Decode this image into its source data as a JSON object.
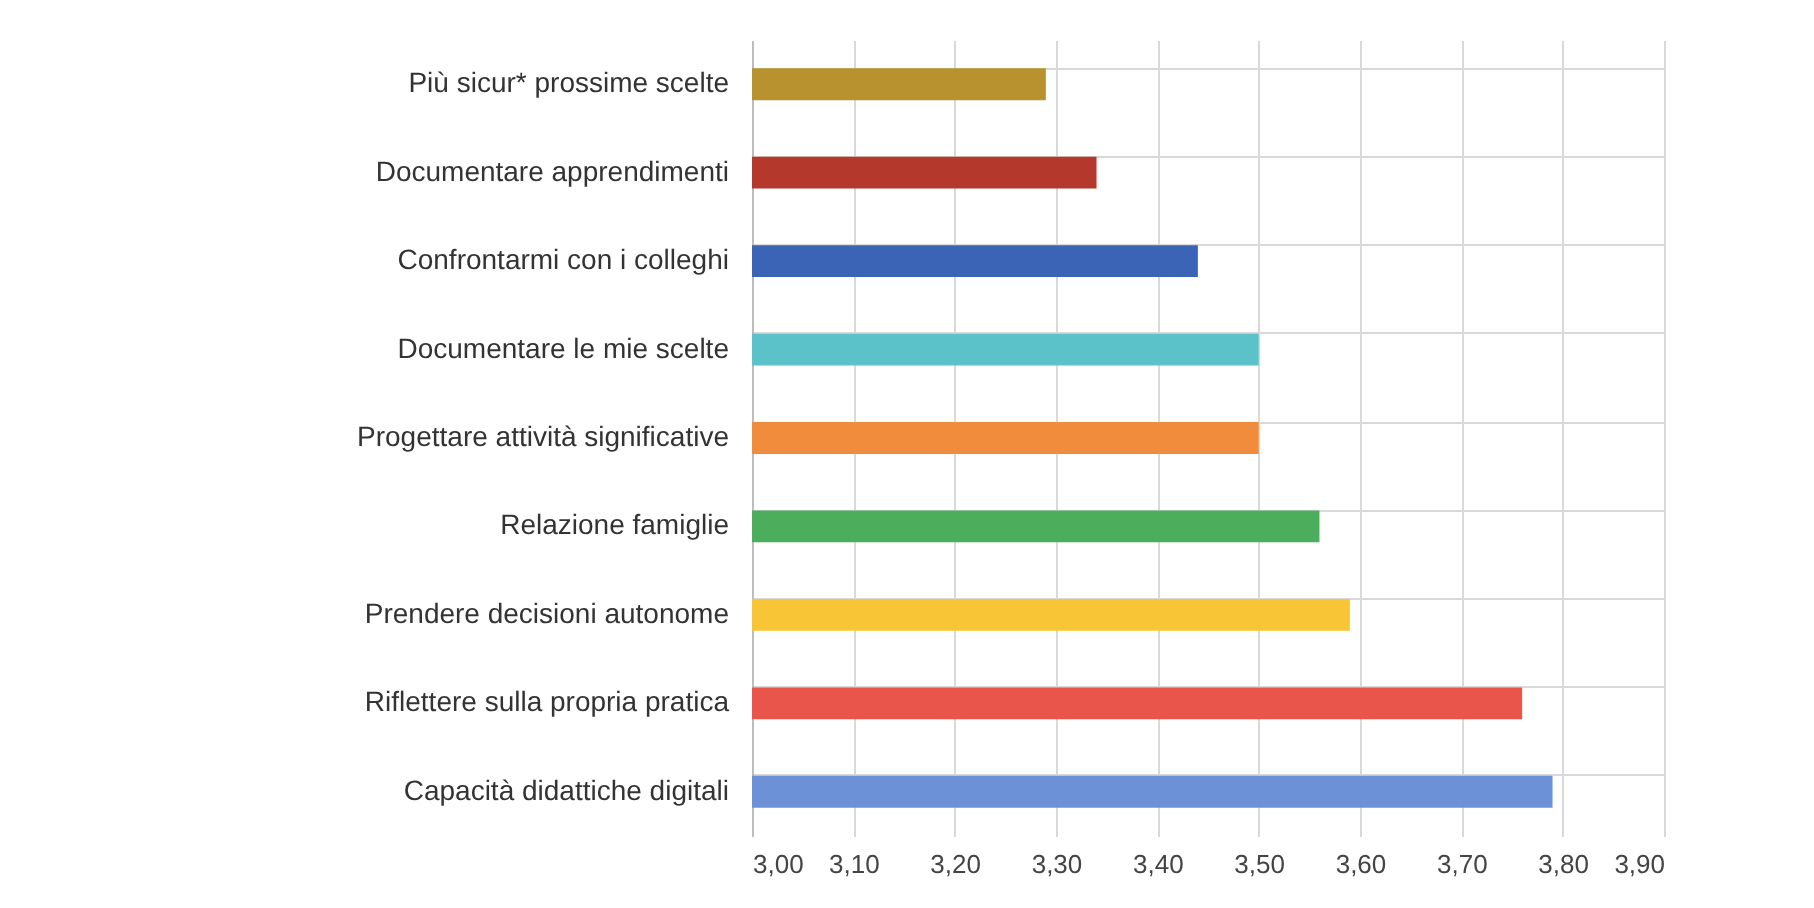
{
  "chart_data": {
    "type": "bar",
    "orientation": "horizontal",
    "categories": [
      "Più sicur* prossime scelte",
      "Documentare apprendimenti",
      "Confrontarmi con i colleghi",
      "Documentare le mie scelte",
      "Progettare attività significative",
      "Relazione famiglie",
      "Prendere decisioni autonome",
      "Riflettere sulla propria pratica",
      "Capacità didattiche digitali"
    ],
    "values": [
      3.29,
      3.34,
      3.44,
      3.5,
      3.5,
      3.56,
      3.59,
      3.76,
      3.79
    ],
    "colors": [
      "#b8922f",
      "#b5382c",
      "#3b63b6",
      "#5cc2ca",
      "#f08c3c",
      "#4cae5c",
      "#f7c535",
      "#e9554b",
      "#6d91d6"
    ],
    "xlim": [
      3.0,
      3.9
    ],
    "xticks": [
      {
        "value": 3.0,
        "label": "3,00"
      },
      {
        "value": 3.1,
        "label": "3,10"
      },
      {
        "value": 3.2,
        "label": "3,20"
      },
      {
        "value": 3.3,
        "label": "3,30"
      },
      {
        "value": 3.4,
        "label": "3,40"
      },
      {
        "value": 3.5,
        "label": "3,50"
      },
      {
        "value": 3.6,
        "label": "3,60"
      },
      {
        "value": 3.7,
        "label": "3,70"
      },
      {
        "value": 3.8,
        "label": "3,80"
      },
      {
        "value": 3.9,
        "label": "3,90"
      }
    ],
    "grid": true
  }
}
